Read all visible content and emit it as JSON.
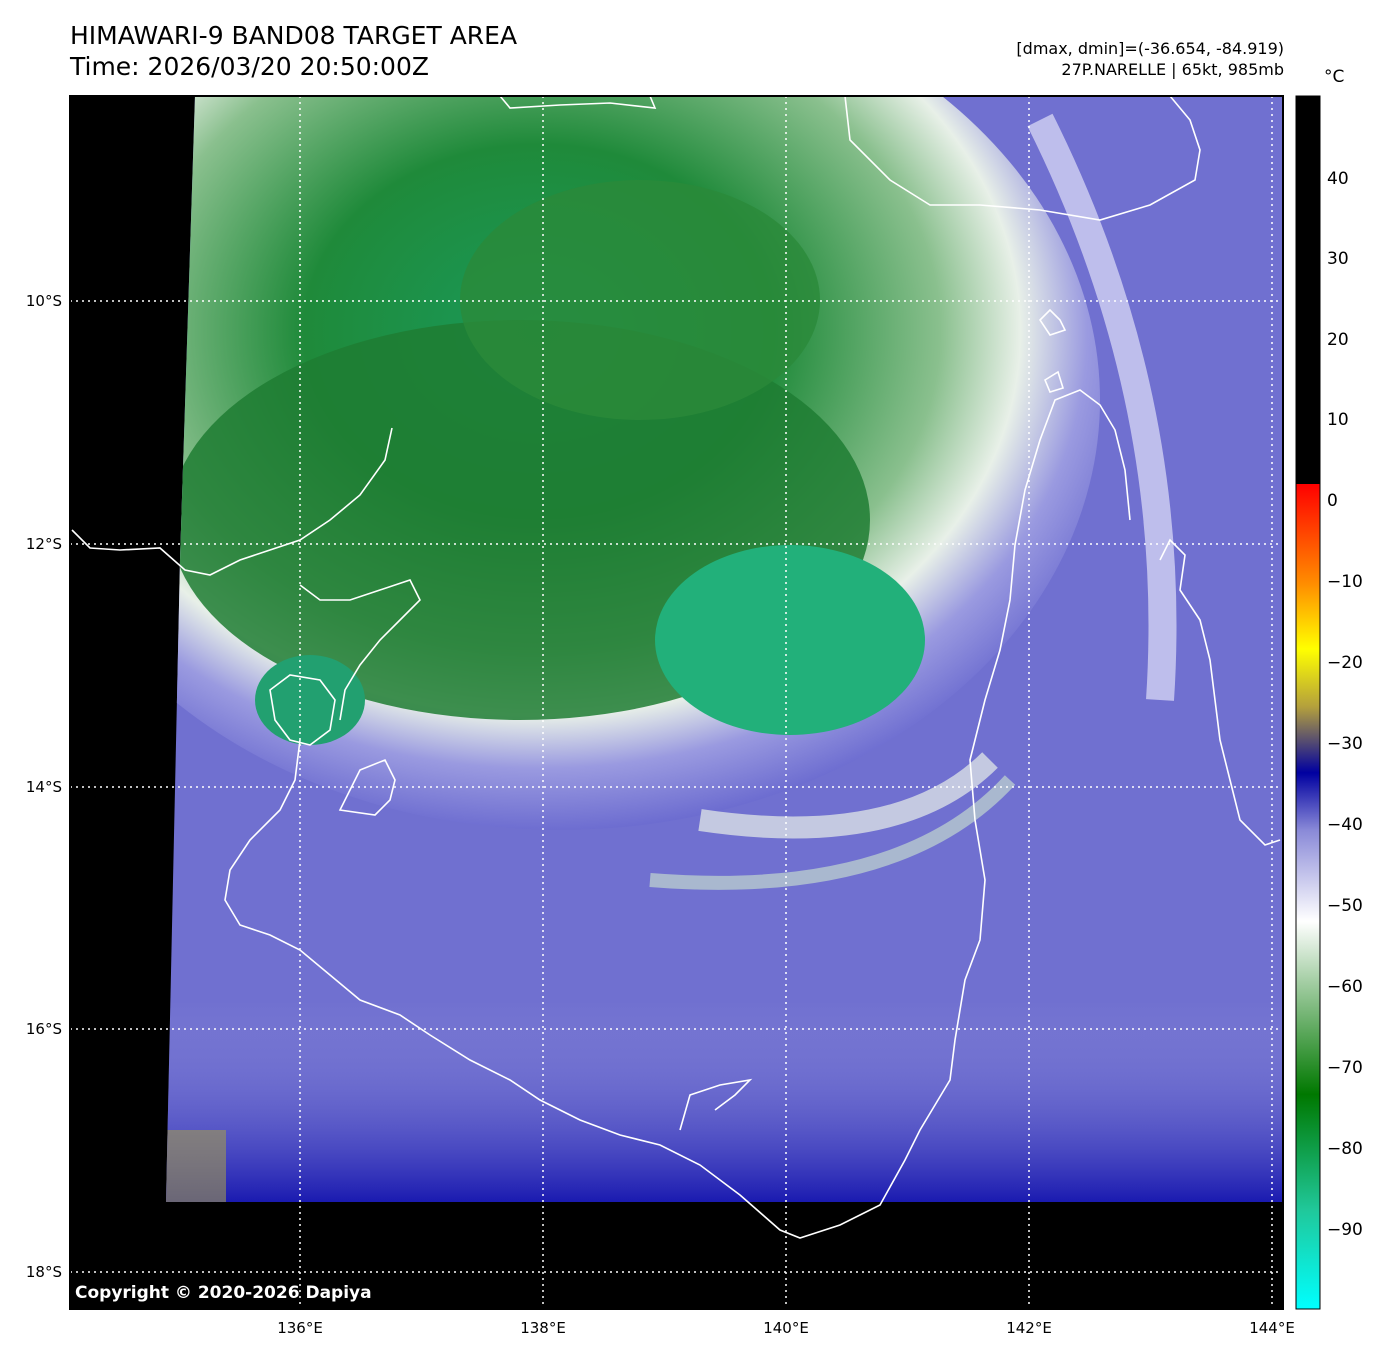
{
  "header": {
    "title_line1": "HIMAWARI-9 BAND08 TARGET AREA",
    "title_line2": "Time: 2026/03/20 20:50:00Z",
    "range_text": "[dmax, dmin]=(-36.654, -84.919)",
    "storm_text": "27P.NARELLE | 65kt, 985mb"
  },
  "map": {
    "lon_labels": [
      "136°E",
      "138°E",
      "140°E",
      "142°E",
      "144°E"
    ],
    "lat_labels": [
      "10°S",
      "12°S",
      "14°S",
      "16°S",
      "18°S"
    ],
    "extent": {
      "lon_min": 134.1,
      "lon_max": 144.1,
      "lat_min": -18.3,
      "lat_max": -8.3
    },
    "gridlines": true
  },
  "colorbar": {
    "unit": "°C",
    "labels": [
      "40",
      "30",
      "20",
      "10",
      "0",
      "−10",
      "−20",
      "−30",
      "−40",
      "−50",
      "−60",
      "−70",
      "−80",
      "−90"
    ],
    "colors": {
      "warm": "#000000",
      "cold_top": "#ff0000",
      "orange": "#ff8c00",
      "yellow": "#ffff00",
      "olive": "#b4a03c",
      "dark_blue": "#0000a0",
      "lavender": "#9a9ae0",
      "white": "#ffffff",
      "green": "#007800",
      "cyan": "#00ffff"
    }
  },
  "footer": {
    "copyright": "Copyright © 2020-2026 Dapiya"
  }
}
